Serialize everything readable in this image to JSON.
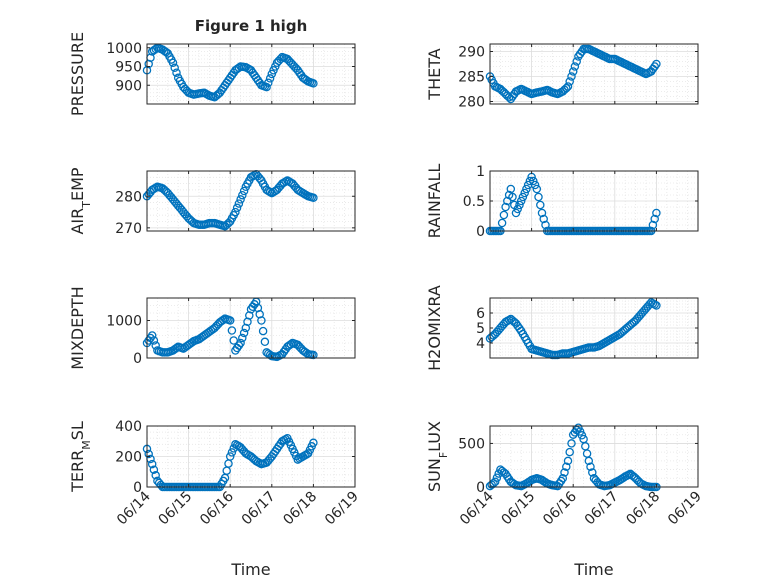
{
  "figure": {
    "title": "Figure 1 high",
    "x_tick_labels": [
      "06/14",
      "06/15",
      "06/16",
      "06/17",
      "06/18",
      "06/19"
    ],
    "xlabel": "Time"
  },
  "chart_data": [
    {
      "type": "scatter",
      "ylabel": "PRESSURE",
      "ylim": [
        850,
        1010
      ],
      "yticks": [
        900,
        950,
        1000
      ],
      "xlim": [
        "06/14",
        "06/19"
      ],
      "grid": true,
      "marker": "open-circle",
      "color": "#0072BD",
      "x": [
        "06/14 00:00",
        "06/14 03:00",
        "06/14 06:00",
        "06/14 09:00",
        "06/14 12:00",
        "06/14 15:00",
        "06/14 18:00",
        "06/14 21:00",
        "06/15 00:00",
        "06/15 03:00",
        "06/15 06:00",
        "06/15 09:00",
        "06/15 12:00",
        "06/15 15:00",
        "06/15 18:00",
        "06/15 21:00",
        "06/16 00:00",
        "06/16 03:00",
        "06/16 06:00",
        "06/16 09:00",
        "06/16 12:00",
        "06/16 15:00",
        "06/16 18:00",
        "06/16 21:00",
        "06/17 00:00",
        "06/17 03:00",
        "06/17 06:00",
        "06/17 09:00",
        "06/17 12:00",
        "06/17 15:00",
        "06/17 18:00",
        "06/17 21:00",
        "06/18 00:00"
      ],
      "y": [
        940,
        990,
        1000,
        995,
        985,
        960,
        920,
        895,
        880,
        875,
        878,
        880,
        872,
        868,
        880,
        900,
        920,
        940,
        950,
        948,
        940,
        920,
        900,
        895,
        930,
        960,
        975,
        970,
        955,
        940,
        920,
        910,
        905
      ]
    },
    {
      "type": "scatter",
      "ylabel": "THETA",
      "ylim": [
        279.5,
        291.5
      ],
      "yticks": [
        280,
        285,
        290
      ],
      "xlim": [
        "06/14",
        "06/19"
      ],
      "grid": true,
      "marker": "open-circle",
      "color": "#0072BD",
      "x": [
        "06/14 00:00",
        "06/14 03:00",
        "06/14 06:00",
        "06/14 09:00",
        "06/14 12:00",
        "06/14 15:00",
        "06/14 18:00",
        "06/14 21:00",
        "06/15 00:00",
        "06/15 03:00",
        "06/15 06:00",
        "06/15 09:00",
        "06/15 12:00",
        "06/15 15:00",
        "06/15 18:00",
        "06/15 21:00",
        "06/16 00:00",
        "06/16 03:00",
        "06/16 06:00",
        "06/16 09:00",
        "06/16 12:00",
        "06/16 15:00",
        "06/16 18:00",
        "06/16 21:00",
        "06/17 00:00",
        "06/17 03:00",
        "06/17 06:00",
        "06/17 09:00",
        "06/17 12:00",
        "06/17 15:00",
        "06/17 18:00",
        "06/17 21:00",
        "06/18 00:00"
      ],
      "y": [
        285,
        283,
        282.5,
        281.5,
        280.5,
        282,
        282.5,
        282,
        281.5,
        281.8,
        282,
        282.3,
        281.8,
        281.5,
        282,
        283,
        286,
        289,
        290.5,
        290.5,
        290,
        289.5,
        289,
        288.5,
        288.5,
        288,
        287.5,
        287,
        286.5,
        286,
        285.5,
        286,
        287.5
      ]
    },
    {
      "type": "scatter",
      "ylabel": "AIR_TEMP",
      "ylim": [
        269,
        288
      ],
      "yticks": [
        270,
        280
      ],
      "xlim": [
        "06/14",
        "06/19"
      ],
      "grid": true,
      "marker": "open-circle",
      "color": "#0072BD",
      "x": [
        "06/14 00:00",
        "06/14 03:00",
        "06/14 06:00",
        "06/14 09:00",
        "06/14 12:00",
        "06/14 15:00",
        "06/14 18:00",
        "06/14 21:00",
        "06/15 00:00",
        "06/15 03:00",
        "06/15 06:00",
        "06/15 09:00",
        "06/15 12:00",
        "06/15 15:00",
        "06/15 18:00",
        "06/15 21:00",
        "06/16 00:00",
        "06/16 03:00",
        "06/16 06:00",
        "06/16 09:00",
        "06/16 12:00",
        "06/16 15:00",
        "06/16 18:00",
        "06/16 21:00",
        "06/17 00:00",
        "06/17 03:00",
        "06/17 06:00",
        "06/17 09:00",
        "06/17 12:00",
        "06/17 15:00",
        "06/17 18:00",
        "06/17 21:00",
        "06/18 00:00"
      ],
      "y": [
        280,
        282,
        283,
        282.5,
        281,
        279,
        277,
        275,
        273,
        271.5,
        271,
        271,
        271.5,
        271.5,
        271,
        270.5,
        272,
        275,
        279,
        283,
        286,
        287,
        285,
        282,
        281,
        282,
        284,
        285,
        284,
        282,
        281,
        280,
        279.5
      ]
    },
    {
      "type": "scatter",
      "ylabel": "RAINFALL",
      "ylim": [
        0,
        1
      ],
      "yticks": [
        0,
        0.5,
        1
      ],
      "xlim": [
        "06/14",
        "06/19"
      ],
      "grid": true,
      "marker": "open-circle",
      "color": "#0072BD",
      "x": [
        "06/14 00:00",
        "06/14 03:00",
        "06/14 06:00",
        "06/14 09:00",
        "06/14 12:00",
        "06/14 15:00",
        "06/14 18:00",
        "06/14 21:00",
        "06/15 00:00",
        "06/15 03:00",
        "06/15 06:00",
        "06/15 09:00",
        "06/15 12:00",
        "06/15 15:00",
        "06/15 18:00",
        "06/15 21:00",
        "06/16 00:00",
        "06/16 03:00",
        "06/16 06:00",
        "06/16 09:00",
        "06/16 12:00",
        "06/16 15:00",
        "06/16 18:00",
        "06/16 21:00",
        "06/17 00:00",
        "06/17 03:00",
        "06/17 06:00",
        "06/17 09:00",
        "06/17 12:00",
        "06/17 15:00",
        "06/17 18:00",
        "06/17 21:00",
        "06/18 00:00"
      ],
      "y": [
        0,
        0,
        0,
        0.4,
        0.7,
        0.3,
        0.5,
        0.7,
        0.9,
        0.7,
        0.3,
        0,
        0,
        0,
        0,
        0,
        0,
        0,
        0,
        0,
        0,
        0,
        0,
        0,
        0,
        0,
        0,
        0,
        0,
        0,
        0,
        0,
        0.3
      ]
    },
    {
      "type": "scatter",
      "ylabel": "MIXDEPTH",
      "ylim": [
        0,
        1600
      ],
      "yticks": [
        0,
        1000
      ],
      "xlim": [
        "06/14",
        "06/19"
      ],
      "grid": true,
      "marker": "open-circle",
      "color": "#0072BD",
      "x": [
        "06/14 00:00",
        "06/14 03:00",
        "06/14 06:00",
        "06/14 09:00",
        "06/14 12:00",
        "06/14 15:00",
        "06/14 18:00",
        "06/14 21:00",
        "06/15 00:00",
        "06/15 03:00",
        "06/15 06:00",
        "06/15 09:00",
        "06/15 12:00",
        "06/15 15:00",
        "06/15 18:00",
        "06/15 21:00",
        "06/16 00:00",
        "06/16 03:00",
        "06/16 06:00",
        "06/16 09:00",
        "06/16 12:00",
        "06/16 15:00",
        "06/16 18:00",
        "06/16 21:00",
        "06/17 00:00",
        "06/17 03:00",
        "06/17 06:00",
        "06/17 09:00",
        "06/17 12:00",
        "06/17 15:00",
        "06/17 18:00",
        "06/17 21:00",
        "06/18 00:00"
      ],
      "y": [
        400,
        600,
        200,
        150,
        150,
        200,
        300,
        250,
        350,
        450,
        500,
        600,
        700,
        800,
        950,
        1050,
        1000,
        200,
        400,
        800,
        1300,
        1500,
        1000,
        150,
        50,
        30,
        100,
        300,
        400,
        350,
        200,
        100,
        80
      ]
    },
    {
      "type": "scatter",
      "ylabel": "H2OMIXRA",
      "ylim": [
        3,
        7
      ],
      "yticks": [
        4,
        5,
        6
      ],
      "xlim": [
        "06/14",
        "06/19"
      ],
      "grid": true,
      "marker": "open-circle",
      "color": "#0072BD",
      "x": [
        "06/14 00:00",
        "06/14 03:00",
        "06/14 06:00",
        "06/14 09:00",
        "06/14 12:00",
        "06/14 15:00",
        "06/14 18:00",
        "06/14 21:00",
        "06/15 00:00",
        "06/15 03:00",
        "06/15 06:00",
        "06/15 09:00",
        "06/15 12:00",
        "06/15 15:00",
        "06/15 18:00",
        "06/15 21:00",
        "06/16 00:00",
        "06/16 03:00",
        "06/16 06:00",
        "06/16 09:00",
        "06/16 12:00",
        "06/16 15:00",
        "06/16 18:00",
        "06/16 21:00",
        "06/17 00:00",
        "06/17 03:00",
        "06/17 06:00",
        "06/17 09:00",
        "06/17 12:00",
        "06/17 15:00",
        "06/17 18:00",
        "06/17 21:00",
        "06/18 00:00"
      ],
      "y": [
        4.3,
        4.6,
        5,
        5.4,
        5.6,
        5.3,
        4.8,
        4.2,
        3.6,
        3.5,
        3.4,
        3.3,
        3.2,
        3.2,
        3.3,
        3.3,
        3.4,
        3.5,
        3.6,
        3.7,
        3.7,
        3.8,
        4,
        4.2,
        4.4,
        4.6,
        4.9,
        5.2,
        5.5,
        5.9,
        6.3,
        6.7,
        6.5
      ]
    },
    {
      "type": "scatter",
      "ylabel": "TERR_MSL",
      "ylim": [
        0,
        400
      ],
      "yticks": [
        0,
        200,
        400
      ],
      "xlim": [
        "06/14",
        "06/19"
      ],
      "grid": true,
      "marker": "open-circle",
      "color": "#0072BD",
      "x": [
        "06/14 00:00",
        "06/14 03:00",
        "06/14 06:00",
        "06/14 09:00",
        "06/14 12:00",
        "06/14 15:00",
        "06/14 18:00",
        "06/14 21:00",
        "06/15 00:00",
        "06/15 03:00",
        "06/15 06:00",
        "06/15 09:00",
        "06/15 12:00",
        "06/15 15:00",
        "06/15 18:00",
        "06/15 21:00",
        "06/16 00:00",
        "06/16 03:00",
        "06/16 06:00",
        "06/16 09:00",
        "06/16 12:00",
        "06/16 15:00",
        "06/16 18:00",
        "06/16 21:00",
        "06/17 00:00",
        "06/17 03:00",
        "06/17 06:00",
        "06/17 09:00",
        "06/17 12:00",
        "06/17 15:00",
        "06/17 18:00",
        "06/17 21:00",
        "06/18 00:00"
      ],
      "y": [
        250,
        150,
        40,
        0,
        0,
        0,
        0,
        0,
        0,
        0,
        0,
        0,
        0,
        0,
        0,
        60,
        200,
        280,
        260,
        220,
        200,
        170,
        150,
        160,
        200,
        250,
        300,
        320,
        250,
        180,
        200,
        220,
        290
      ]
    },
    {
      "type": "scatter",
      "ylabel": "SUN_FLUX",
      "ylim": [
        0,
        700
      ],
      "yticks": [
        0,
        500
      ],
      "xlim": [
        "06/14",
        "06/19"
      ],
      "grid": true,
      "marker": "open-circle",
      "color": "#0072BD",
      "x": [
        "06/14 00:00",
        "06/14 03:00",
        "06/14 06:00",
        "06/14 09:00",
        "06/14 12:00",
        "06/14 15:00",
        "06/14 18:00",
        "06/14 21:00",
        "06/15 00:00",
        "06/15 03:00",
        "06/15 06:00",
        "06/15 09:00",
        "06/15 12:00",
        "06/15 15:00",
        "06/15 18:00",
        "06/15 21:00",
        "06/16 00:00",
        "06/16 03:00",
        "06/16 06:00",
        "06/16 09:00",
        "06/16 12:00",
        "06/16 15:00",
        "06/16 18:00",
        "06/16 21:00",
        "06/17 00:00",
        "06/17 03:00",
        "06/17 06:00",
        "06/17 09:00",
        "06/17 12:00",
        "06/17 15:00",
        "06/17 18:00",
        "06/17 21:00",
        "06/18 00:00"
      ],
      "y": [
        10,
        60,
        200,
        150,
        60,
        20,
        10,
        40,
        80,
        100,
        80,
        40,
        20,
        10,
        100,
        300,
        600,
        680,
        550,
        300,
        100,
        30,
        10,
        20,
        50,
        80,
        120,
        150,
        100,
        40,
        10,
        0,
        0
      ]
    }
  ]
}
